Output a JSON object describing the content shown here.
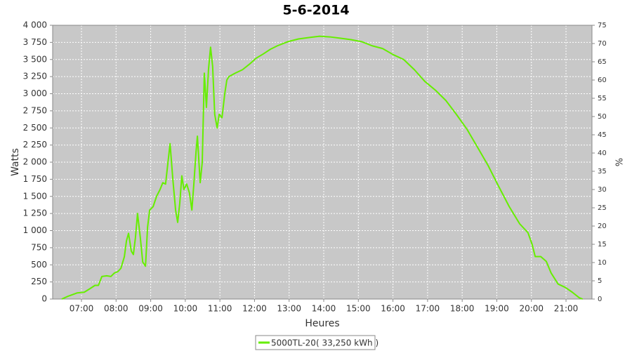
{
  "chart_data": {
    "type": "line",
    "title": "5-6-2014",
    "x_label": "Heures",
    "y_label": "Watts",
    "y2_label": "%",
    "x": [
      6.43,
      6.61,
      6.88,
      7.08,
      7.24,
      7.39,
      7.49,
      7.59,
      7.73,
      7.85,
      7.95,
      8.05,
      8.14,
      8.24,
      8.3,
      8.36,
      8.44,
      8.5,
      8.56,
      8.62,
      8.7,
      8.77,
      8.85,
      8.91,
      8.97,
      9.07,
      9.17,
      9.27,
      9.35,
      9.43,
      9.5,
      9.56,
      9.64,
      9.72,
      9.78,
      9.84,
      9.9,
      9.96,
      10.04,
      10.12,
      10.19,
      10.25,
      10.31,
      10.35,
      10.43,
      10.49,
      10.55,
      10.61,
      10.67,
      10.73,
      10.79,
      10.85,
      10.92,
      10.98,
      11.06,
      11.14,
      11.2,
      11.26,
      11.44,
      11.65,
      11.85,
      12.05,
      12.25,
      12.46,
      12.66,
      12.96,
      13.27,
      13.57,
      13.88,
      14.18,
      14.49,
      14.79,
      15.1,
      15.4,
      15.7,
      16.01,
      16.31,
      16.62,
      16.92,
      17.23,
      17.53,
      17.83,
      18.14,
      18.44,
      18.75,
      19.05,
      19.36,
      19.66,
      19.9,
      20.02,
      20.11,
      20.27,
      20.43,
      20.57,
      20.77,
      20.98,
      21.18,
      21.38,
      21.48
    ],
    "series": [
      {
        "name": "5000TL-20( 33,250 kWh )",
        "color": "#66ee00",
        "values": [
          0,
          40,
          90,
          100,
          150,
          200,
          200,
          330,
          340,
          330,
          380,
          400,
          450,
          620,
          850,
          960,
          700,
          650,
          900,
          1250,
          900,
          540,
          480,
          1050,
          1300,
          1350,
          1500,
          1600,
          1700,
          1680,
          2000,
          2270,
          1750,
          1300,
          1120,
          1400,
          1800,
          1600,
          1680,
          1550,
          1300,
          1700,
          2150,
          2380,
          1700,
          2000,
          3300,
          2800,
          3350,
          3680,
          3400,
          2700,
          2500,
          2700,
          2650,
          3000,
          3200,
          3250,
          3300,
          3350,
          3430,
          3520,
          3580,
          3650,
          3700,
          3760,
          3800,
          3820,
          3840,
          3830,
          3810,
          3790,
          3760,
          3700,
          3660,
          3570,
          3500,
          3350,
          3180,
          3050,
          2900,
          2700,
          2480,
          2220,
          1950,
          1650,
          1350,
          1100,
          970,
          800,
          620,
          620,
          550,
          380,
          220,
          170,
          100,
          20,
          0
        ]
      }
    ],
    "xlim": [
      6.168,
      21.75
    ],
    "xticks": [
      {
        "value": 7,
        "label": "07:00"
      },
      {
        "value": 8,
        "label": "08:00"
      },
      {
        "value": 9,
        "label": "09:00"
      },
      {
        "value": 10,
        "label": "10:00"
      },
      {
        "value": 11,
        "label": "11:00"
      },
      {
        "value": 12,
        "label": "12:00"
      },
      {
        "value": 13,
        "label": "13:00"
      },
      {
        "value": 14,
        "label": "14:00"
      },
      {
        "value": 15,
        "label": "15:00"
      },
      {
        "value": 16,
        "label": "16:00"
      },
      {
        "value": 17,
        "label": "17:00"
      },
      {
        "value": 18,
        "label": "18:00"
      },
      {
        "value": 19,
        "label": "19:00"
      },
      {
        "value": 20,
        "label": "20:00"
      },
      {
        "value": 21,
        "label": "21:00"
      }
    ],
    "ylim": [
      0,
      4000
    ],
    "yticks": [
      0,
      250,
      500,
      750,
      {
        "value": 1000,
        "label": "1 000"
      },
      {
        "value": 1250,
        "label": "1 250"
      },
      {
        "value": 1500,
        "label": "1 500"
      },
      {
        "value": 1750,
        "label": "1 750"
      },
      {
        "value": 2000,
        "label": "2 000"
      },
      {
        "value": 2250,
        "label": "2 250"
      },
      {
        "value": 2500,
        "label": "2 500"
      },
      {
        "value": 2750,
        "label": "2 750"
      },
      {
        "value": 3000,
        "label": "3 000"
      },
      {
        "value": 3250,
        "label": "3 250"
      },
      {
        "value": 3500,
        "label": "3 500"
      },
      {
        "value": 3750,
        "label": "3 750"
      },
      {
        "value": 4000,
        "label": "4 000"
      }
    ],
    "y2lim": [
      0,
      75
    ],
    "y2ticks": [
      0,
      5,
      10,
      15,
      20,
      25,
      30,
      35,
      40,
      45,
      50,
      55,
      60,
      65,
      70,
      75
    ],
    "grid": true,
    "legend": "bottom"
  }
}
